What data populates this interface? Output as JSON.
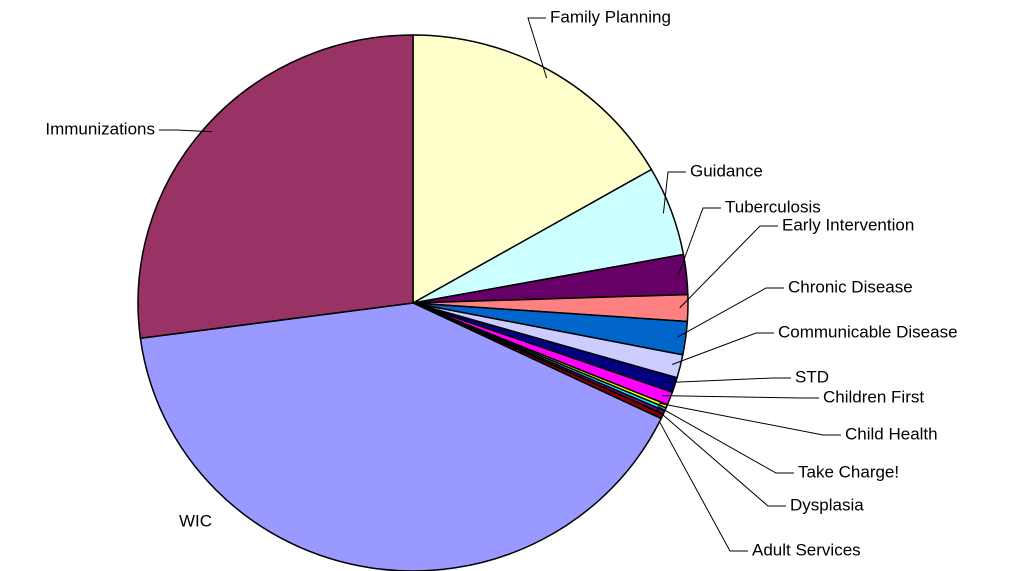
{
  "chart_data": {
    "type": "pie",
    "categories": [
      "Family Planning",
      "Guidance",
      "Tuberculosis",
      "Early Intervention",
      "Chronic Disease",
      "Communicable Disease",
      "STD",
      "Children First",
      "Child Health",
      "Take Charge!",
      "Dysplasia",
      "Adult Services",
      "WIC",
      "Immunizations"
    ],
    "values": [
      16.7,
      5.4,
      2.4,
      1.6,
      2.0,
      1.4,
      0.9,
      0.8,
      0.2,
      0.2,
      0.2,
      0.3,
      40.8,
      27.1
    ],
    "colors": [
      "#ffffcc",
      "#ccffff",
      "#660066",
      "#ff8080",
      "#0066cc",
      "#ccccff",
      "#000080",
      "#ff00ff",
      "#ffff00",
      "#00ffff",
      "#800080",
      "#800000",
      "#9999ff",
      "#993366"
    ]
  }
}
